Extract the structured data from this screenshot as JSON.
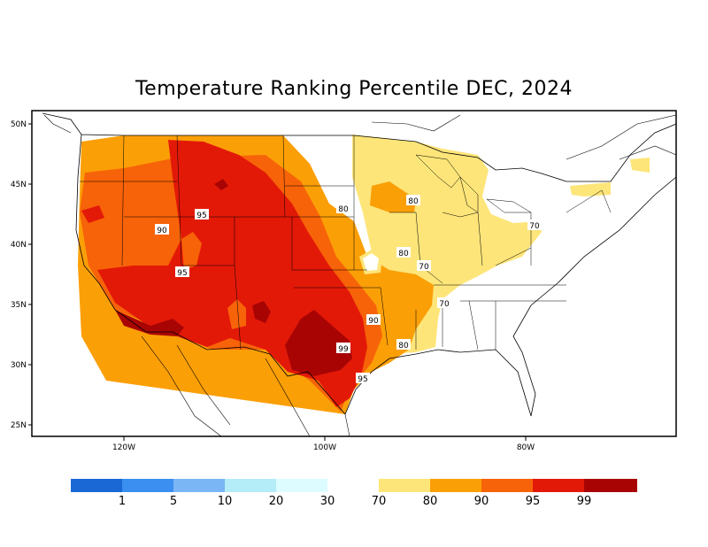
{
  "title": "Temperature Ranking Percentile DEC, 2024",
  "axes": {
    "lat_labels": [
      "50N",
      "45N",
      "40N",
      "35N",
      "30N",
      "25N"
    ],
    "lon_labels": [
      "120W",
      "100W",
      "80W"
    ]
  },
  "contour_labels": [
    "95",
    "90",
    "95",
    "80",
    "80",
    "80",
    "70",
    "70",
    "70",
    "90",
    "80",
    "99",
    "95"
  ],
  "legend": {
    "cold_colors": [
      "#1a68d6",
      "#3b8ff0",
      "#7ab6f6",
      "#b4ecf8",
      "#ddfcff"
    ],
    "warm_colors": [
      "#fde579",
      "#fb9f07",
      "#f76308",
      "#e31908",
      "#a90404"
    ],
    "labels": [
      "1",
      "5",
      "10",
      "20",
      "30",
      "70",
      "80",
      "90",
      "95",
      "99"
    ]
  },
  "map_colors": {
    "p70": "#fde579",
    "p80": "#fb9f07",
    "p90": "#f76308",
    "p95": "#e31908",
    "p99": "#a90404"
  }
}
